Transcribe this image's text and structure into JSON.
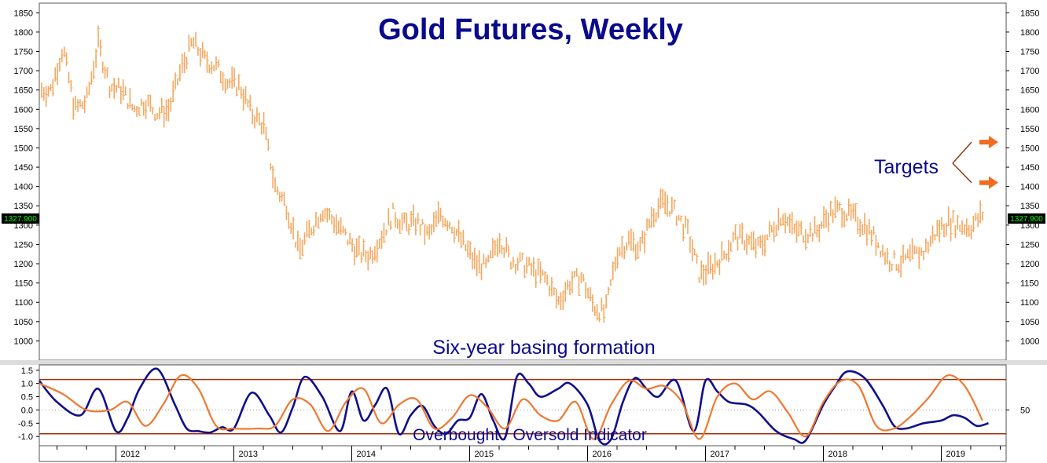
{
  "chart_data": [
    {
      "type": "bar",
      "subtype": "ohlc",
      "title": "Gold Futures, Weekly",
      "xlabel": "",
      "ylabel": "",
      "ylim": [
        950,
        1875
      ],
      "y_ticks": [
        1000,
        1050,
        1100,
        1150,
        1200,
        1250,
        1300,
        1350,
        1400,
        1450,
        1500,
        1550,
        1600,
        1650,
        1700,
        1750,
        1800,
        1850
      ],
      "x_ticks": [
        "2012",
        "2013",
        "2014",
        "2015",
        "2016",
        "2017",
        "2018",
        "2019"
      ],
      "last_price_label": "1327.900",
      "last_price": 1327.9,
      "bar_color": "#f4a860",
      "annotations": [
        "Six-year basing formation",
        "Targets"
      ],
      "targets": [
        1515,
        1410
      ],
      "series": [
        {
          "x": [
            2011.45,
            2011.55,
            2011.65,
            2011.75,
            2011.85,
            2011.95,
            2012.05,
            2012.15,
            2012.25,
            2012.35,
            2012.45,
            2012.55,
            2012.65,
            2012.75,
            2012.85,
            2012.95,
            2013.05,
            2013.15,
            2013.25,
            2013.35,
            2013.45,
            2013.55,
            2013.65,
            2013.75,
            2013.85,
            2013.95,
            2014.05,
            2014.15,
            2014.25,
            2014.35,
            2014.45,
            2014.55,
            2014.65,
            2014.75,
            2014.85,
            2014.95,
            2015.05,
            2015.15,
            2015.25,
            2015.35,
            2015.45,
            2015.55,
            2015.65,
            2015.75,
            2015.85,
            2015.95,
            2016.05,
            2016.15,
            2016.25,
            2016.35,
            2016.45,
            2016.55,
            2016.65,
            2016.75,
            2016.85,
            2016.95,
            2017.05,
            2017.15,
            2017.25,
            2017.35,
            2017.45,
            2017.55,
            2017.65,
            2017.75,
            2017.85,
            2017.95,
            2018.05,
            2018.15,
            2018.25,
            2018.35,
            2018.45,
            2018.55,
            2018.65,
            2018.75,
            2018.85,
            2018.95,
            2019.05,
            2019.15,
            2019.25,
            2019.35
          ],
          "values": [
            1650,
            1760,
            1600,
            1620,
            1770,
            1660,
            1650,
            1600,
            1620,
            1590,
            1600,
            1700,
            1775,
            1730,
            1710,
            1670,
            1660,
            1590,
            1560,
            1400,
            1350,
            1230,
            1290,
            1340,
            1310,
            1270,
            1230,
            1220,
            1270,
            1330,
            1300,
            1310,
            1270,
            1330,
            1300,
            1250,
            1200,
            1190,
            1270,
            1210,
            1200,
            1180,
            1160,
            1100,
            1150,
            1165,
            1090,
            1070,
            1230,
            1260,
            1240,
            1330,
            1360,
            1330,
            1280,
            1170,
            1190,
            1220,
            1270,
            1260,
            1240,
            1280,
            1330,
            1285,
            1280,
            1285,
            1330,
            1340,
            1320,
            1300,
            1260,
            1210,
            1200,
            1220,
            1230,
            1280,
            1310,
            1300,
            1295,
            1327.9
          ]
        }
      ]
    },
    {
      "type": "line",
      "title": "",
      "annotation": "Overbought / Oversold Indicator",
      "ylim": [
        -1.35,
        1.7
      ],
      "y_ticks": [
        1.5,
        1.0,
        0.5,
        0.0,
        -0.5,
        -1.0
      ],
      "y_tick_labels": [
        "1.5",
        "1.0",
        "0.5",
        "0.0",
        "-0.5",
        "-1.0"
      ],
      "right_tick_label": "50",
      "right_tick_value": 0.0,
      "threshold_lines": [
        1.15,
        -0.9
      ],
      "threshold_color": "#a0300a",
      "series": [
        {
          "name": "",
          "color": "#10108a",
          "x": [
            2011.35,
            2011.5,
            2011.7,
            2011.85,
            2012.0,
            2012.1,
            2012.2,
            2012.35,
            2012.5,
            2012.6,
            2012.7,
            2012.8,
            2012.9,
            2013.0,
            2013.15,
            2013.3,
            2013.4,
            2013.5,
            2013.6,
            2013.75,
            2013.9,
            2014.0,
            2014.1,
            2014.2,
            2014.3,
            2014.4,
            2014.5,
            2014.6,
            2014.7,
            2014.8,
            2014.9,
            2015.0,
            2015.1,
            2015.2,
            2015.3,
            2015.4,
            2015.5,
            2015.6,
            2015.75,
            2015.85,
            2016.0,
            2016.1,
            2016.2,
            2016.3,
            2016.4,
            2016.5,
            2016.6,
            2016.75,
            2016.9,
            2017.0,
            2017.1,
            2017.2,
            2017.35,
            2017.45,
            2017.6,
            2017.75,
            2017.85,
            2018.0,
            2018.1,
            2018.2,
            2018.35,
            2018.5,
            2018.6,
            2018.7,
            2018.85,
            2019.0,
            2019.1,
            2019.2,
            2019.3,
            2019.4
          ],
          "values": [
            1.1,
            0.3,
            -0.2,
            0.8,
            -0.8,
            -0.3,
            0.8,
            1.55,
            0.2,
            -0.7,
            -0.8,
            -0.85,
            -0.65,
            -0.7,
            0.65,
            -0.2,
            -0.85,
            0.1,
            1.25,
            0.5,
            -0.8,
            0.7,
            -0.4,
            0.2,
            0.8,
            -0.9,
            -0.2,
            0.15,
            -0.6,
            -0.9,
            -0.4,
            -0.3,
            0.6,
            -0.4,
            -1.05,
            1.25,
            1.0,
            0.5,
            0.8,
            1.0,
            0.2,
            -1.15,
            -1.1,
            0.3,
            1.2,
            0.8,
            0.5,
            1.1,
            -0.8,
            1.1,
            0.7,
            0.3,
            0.2,
            -0.1,
            -0.8,
            -1.1,
            -1.15,
            0.2,
            0.9,
            1.45,
            1.2,
            0.2,
            -0.6,
            -0.7,
            -0.5,
            -0.4,
            -0.2,
            -0.3,
            -0.6,
            -0.5
          ]
        },
        {
          "name": "",
          "color": "#f07830",
          "x": [
            2011.35,
            2011.55,
            2011.75,
            2011.95,
            2012.1,
            2012.25,
            2012.4,
            2012.55,
            2012.7,
            2012.85,
            2013.0,
            2013.2,
            2013.35,
            2013.5,
            2013.65,
            2013.8,
            2013.95,
            2014.1,
            2014.25,
            2014.4,
            2014.55,
            2014.7,
            2014.85,
            2015.0,
            2015.15,
            2015.3,
            2015.45,
            2015.6,
            2015.75,
            2015.9,
            2016.05,
            2016.2,
            2016.35,
            2016.5,
            2016.65,
            2016.8,
            2016.95,
            2017.1,
            2017.25,
            2017.4,
            2017.55,
            2017.7,
            2017.85,
            2018.0,
            2018.15,
            2018.3,
            2018.45,
            2018.6,
            2018.75,
            2018.9,
            2019.05,
            2019.2,
            2019.35
          ],
          "values": [
            1.0,
            0.6,
            0.0,
            0.0,
            0.3,
            -0.6,
            0.2,
            1.3,
            0.8,
            -0.6,
            -0.7,
            -0.7,
            -0.6,
            0.4,
            0.2,
            -0.8,
            0.3,
            0.8,
            -0.5,
            0.2,
            0.4,
            -0.7,
            -0.3,
            0.55,
            0.1,
            -0.7,
            0.4,
            -0.2,
            -0.4,
            0.3,
            -1.1,
            0.2,
            1.1,
            0.8,
            0.9,
            0.3,
            -1.1,
            0.5,
            1.0,
            0.4,
            0.7,
            -0.1,
            -1.0,
            0.3,
            1.1,
            0.9,
            -0.6,
            -0.7,
            -0.2,
            0.5,
            1.3,
            0.9,
            -0.4
          ]
        }
      ]
    }
  ]
}
